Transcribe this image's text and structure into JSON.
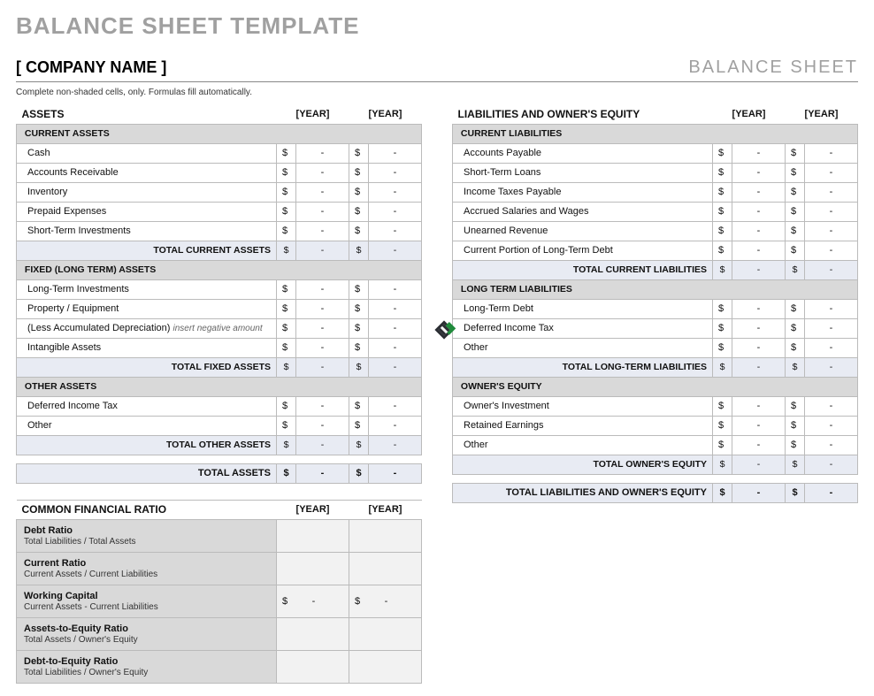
{
  "title": "BALANCE SHEET TEMPLATE",
  "company": "[ COMPANY NAME ]",
  "sheet_label": "BALANCE SHEET",
  "instruction": "Complete non-shaded cells, only.  Formulas fill automatically.",
  "year1": "[YEAR]",
  "year2": "[YEAR]",
  "currency": "$",
  "dash": "-",
  "assets": {
    "header": "ASSETS",
    "sections": [
      {
        "name": "CURRENT ASSETS",
        "rows": [
          "Cash",
          "Accounts Receivable",
          "Inventory",
          "Prepaid Expenses",
          "Short-Term Investments"
        ],
        "total": "TOTAL CURRENT ASSETS"
      },
      {
        "name": "FIXED (LONG TERM) ASSETS",
        "rows": [
          "Long-Term Investments",
          "Property / Equipment",
          "(Less Accumulated Depreciation)",
          "Intangible Assets"
        ],
        "notes": {
          "2": "insert negative amount"
        },
        "total": "TOTAL FIXED ASSETS"
      },
      {
        "name": "OTHER ASSETS",
        "rows": [
          "Deferred Income Tax",
          "Other"
        ],
        "total": "TOTAL OTHER ASSETS"
      }
    ],
    "grand": "TOTAL ASSETS"
  },
  "liab": {
    "header": "LIABILITIES AND OWNER'S EQUITY",
    "sections": [
      {
        "name": "CURRENT LIABILITIES",
        "rows": [
          "Accounts Payable",
          "Short-Term Loans",
          "Income Taxes Payable",
          "Accrued Salaries and Wages",
          "Unearned Revenue",
          "Current Portion of Long-Term Debt"
        ],
        "total": "TOTAL CURRENT LIABILITIES"
      },
      {
        "name": "LONG TERM LIABILITIES",
        "rows": [
          "Long-Term Debt",
          "Deferred Income Tax",
          "Other"
        ],
        "total": "TOTAL LONG-TERM LIABILITIES"
      },
      {
        "name": "OWNER'S EQUITY",
        "rows": [
          "Owner's Investment",
          "Retained Earnings",
          "Other"
        ],
        "total": "TOTAL OWNER'S EQUITY"
      }
    ],
    "grand": "TOTAL LIABILITIES AND OWNER'S EQUITY"
  },
  "ratios": {
    "header": "COMMON FINANCIAL RATIO",
    "items": [
      {
        "t": "Debt Ratio",
        "d": "Total Liabilities / Total Assets",
        "money": false
      },
      {
        "t": "Current Ratio",
        "d": "Current Assets / Current Liabilities",
        "money": false
      },
      {
        "t": "Working Capital",
        "d": "Current Assets - Current Liabilities",
        "money": true
      },
      {
        "t": "Assets-to-Equity Ratio",
        "d": "Total Assets / Owner's Equity",
        "money": false
      },
      {
        "t": "Debt-to-Equity Ratio",
        "d": "Total Liabilities / Owner's Equity",
        "money": false
      }
    ]
  },
  "colors": {
    "title_gray": "#a0a0a0",
    "sub_header_bg": "#d9d9d9",
    "total_bg": "#e8ebf3",
    "cell_gray": "#f7f7f7",
    "ratio_val_bg": "#f2f2f2",
    "border": "#bbbbbb",
    "logo_dark": "#2b2e33",
    "logo_green": "#1f8a3b"
  }
}
